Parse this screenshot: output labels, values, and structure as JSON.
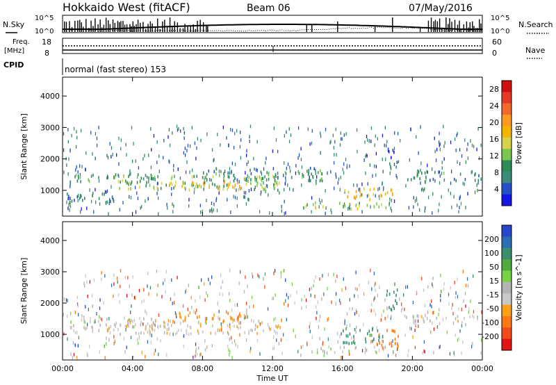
{
  "header": {
    "title": "Hokkaido West (fitACF)",
    "beam": "Beam 06",
    "date": "07/May/2016"
  },
  "summary_panels": {
    "nsky_label": "N.Sky",
    "nsky_ticks": [
      "10^5",
      "10^0"
    ],
    "nsearch_label": "N.Search",
    "nsearch_ticks": [
      "10^5",
      "10^0"
    ],
    "freq_label_line1": "Freq.",
    "freq_label_line2": "[MHz]",
    "freq_ticks": [
      "18",
      "8"
    ],
    "nave_label": "Nave",
    "nave_ticks": [
      "60",
      "0"
    ],
    "cpid_label": "CPID",
    "cpid_text": "normal (fast stereo) 153"
  },
  "chart_data": [
    {
      "type": "heatmap",
      "title": "",
      "xlabel": "",
      "ylabel": "Slant Range [km]",
      "x_ticks": [
        "00:00",
        "04:00",
        "08:00",
        "12:00",
        "16:00",
        "20:00",
        "00:00"
      ],
      "xlim_hours": [
        0,
        24
      ],
      "y_ticks": [
        1000,
        2000,
        3000,
        4000
      ],
      "ylim": [
        180,
        4600
      ],
      "colorbar": {
        "label": "Power [dB]",
        "ticks": [
          4,
          8,
          12,
          16,
          20,
          24,
          28
        ],
        "range": [
          0,
          30
        ],
        "colors": [
          "#1515e6",
          "#2650c8",
          "#3c8a78",
          "#2e8b57",
          "#78c850",
          "#d7d24a",
          "#f5b400",
          "#ff9a1e",
          "#f06a2a",
          "#e63a28",
          "#d20f0f"
        ]
      },
      "regions": [
        {
          "x": [
            0.4,
            5.5
          ],
          "range": [
            1250,
            1550
          ],
          "value": 9
        },
        {
          "x": [
            0.2,
            3.0
          ],
          "range": [
            650,
            1000
          ],
          "value": 7
        },
        {
          "x": [
            2.5,
            12.5
          ],
          "range": [
            1050,
            1500
          ],
          "value": 12
        },
        {
          "x": [
            6.0,
            10.5
          ],
          "range": [
            1100,
            1300
          ],
          "value": 18
        },
        {
          "x": [
            8.0,
            15.0
          ],
          "range": [
            1350,
            1750
          ],
          "value": 8
        },
        {
          "x": [
            13.5,
            18.5
          ],
          "range": [
            450,
            650
          ],
          "value": 13
        },
        {
          "x": [
            16.0,
            19.0
          ],
          "range": [
            750,
            1100
          ],
          "value": 17
        },
        {
          "x": [
            19.5,
            24.0
          ],
          "range": [
            1350,
            1650
          ],
          "value": 8
        },
        {
          "x": [
            18.5,
            19.2
          ],
          "range": [
            1700,
            2400
          ],
          "value": 5
        }
      ]
    },
    {
      "type": "heatmap",
      "title": "",
      "xlabel": "Time UT",
      "ylabel": "Slant Range [km]",
      "x_ticks": [
        "00:00",
        "04:00",
        "08:00",
        "12:00",
        "16:00",
        "20:00",
        "00:00"
      ],
      "xlim_hours": [
        0,
        24
      ],
      "y_ticks": [
        1000,
        2000,
        3000,
        4000
      ],
      "ylim": [
        180,
        4600
      ],
      "colorbar": {
        "label": "Velocity [m s^-1]",
        "ticks": [
          200,
          100,
          50,
          15,
          -15,
          -50,
          -100,
          -200
        ],
        "colors": [
          "#2846c8",
          "#2a6eb4",
          "#3c8c6e",
          "#50aa3c",
          "#78d246",
          "#b4b4b4",
          "#c8c8c8",
          "#ffa014",
          "#ff7814",
          "#f04b19",
          "#e11414"
        ]
      },
      "regions": [
        {
          "x": [
            0.4,
            5.5
          ],
          "range": [
            1250,
            1550
          ],
          "value": 0
        },
        {
          "x": [
            2.5,
            12.5
          ],
          "range": [
            1050,
            1500
          ],
          "value": -10
        },
        {
          "x": [
            6.0,
            10.5
          ],
          "range": [
            1400,
            1750
          ],
          "value": -30
        },
        {
          "x": [
            13.5,
            18.5
          ],
          "range": [
            450,
            650
          ],
          "value": 0
        },
        {
          "x": [
            16.0,
            18.2
          ],
          "range": [
            750,
            1250
          ],
          "value": 40
        },
        {
          "x": [
            17.8,
            19.2
          ],
          "range": [
            600,
            1200
          ],
          "value": -60
        },
        {
          "x": [
            18.5,
            19.2
          ],
          "range": [
            1700,
            2500
          ],
          "value": 45
        },
        {
          "x": [
            19.5,
            24.0
          ],
          "range": [
            1350,
            1650
          ],
          "value": -5
        }
      ]
    }
  ]
}
